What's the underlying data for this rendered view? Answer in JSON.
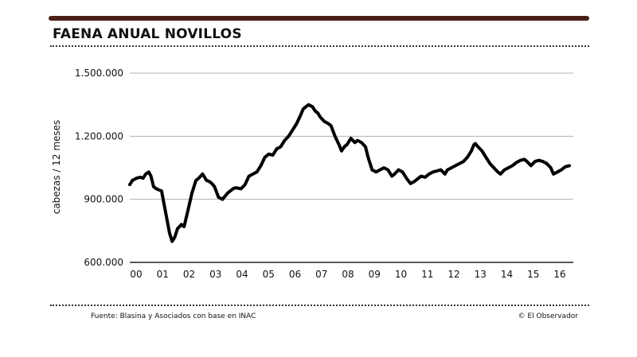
{
  "header": {
    "title": "FAENA ANUAL NOVILLOS"
  },
  "footer": {
    "source": "Fuente: Blasina y Asociados con base en INAC",
    "credit": "© El Observador"
  },
  "colors": {
    "bar": "#4a1f14",
    "line": "#000000",
    "grid": "#b0b0b0"
  },
  "chart_data": {
    "type": "line",
    "title": "FAENA ANUAL NOVILLOS",
    "xlabel": "",
    "ylabel": "cabezas / 12 meses",
    "ylim": [
      600000,
      1500000
    ],
    "xlim": [
      2000.0,
      2016.75
    ],
    "grid": true,
    "legend": "none",
    "y_ticks": [
      {
        "value": 600000,
        "label": "600.000"
      },
      {
        "value": 900000,
        "label": "900.000"
      },
      {
        "value": 1200000,
        "label": "1.200.000"
      },
      {
        "value": 1500000,
        "label": "1.500.000"
      }
    ],
    "x_ticks": [
      {
        "value": 2000,
        "label": "00"
      },
      {
        "value": 2001,
        "label": "01"
      },
      {
        "value": 2002,
        "label": "02"
      },
      {
        "value": 2003,
        "label": "03"
      },
      {
        "value": 2004,
        "label": "04"
      },
      {
        "value": 2005,
        "label": "05"
      },
      {
        "value": 2006,
        "label": "06"
      },
      {
        "value": 2007,
        "label": "07"
      },
      {
        "value": 2008,
        "label": "08"
      },
      {
        "value": 2009,
        "label": "09"
      },
      {
        "value": 2010,
        "label": "10"
      },
      {
        "value": 2011,
        "label": "11"
      },
      {
        "value": 2012,
        "label": "12"
      },
      {
        "value": 2013,
        "label": "13"
      },
      {
        "value": 2014,
        "label": "14"
      },
      {
        "value": 2015,
        "label": "15"
      },
      {
        "value": 2016,
        "label": "16"
      }
    ],
    "series": [
      {
        "x": [
          2000.0,
          2000.1,
          2000.25,
          2000.4,
          2000.5,
          2000.6,
          2000.72,
          2000.8,
          2000.9,
          2001.0,
          2001.1,
          2001.2,
          2001.35,
          2001.5,
          2001.6,
          2001.7,
          2001.8,
          2001.95,
          2002.05,
          2002.2,
          2002.35,
          2002.5,
          2002.6,
          2002.75,
          2002.9,
          2003.0,
          2003.1,
          2003.2,
          2003.35,
          2003.5,
          2003.7,
          2003.9,
          2004.0,
          2004.2,
          2004.35,
          2004.5,
          2004.65,
          2004.8,
          2004.95,
          2005.1,
          2005.25,
          2005.4,
          2005.55,
          2005.7,
          2005.85,
          2006.0,
          2006.15,
          2006.3,
          2006.45,
          2006.55,
          2006.65,
          2006.75,
          2006.9,
          2007.0,
          2007.1,
          2007.2,
          2007.35,
          2007.5,
          2007.6,
          2007.75,
          2007.9,
          2008.0,
          2008.1,
          2008.2,
          2008.35,
          2008.5,
          2008.6,
          2008.75,
          2008.9,
          2009.0,
          2009.15,
          2009.3,
          2009.45,
          2009.6,
          2009.75,
          2009.9,
          2010.0,
          2010.15,
          2010.3,
          2010.45,
          2010.6,
          2010.75,
          2010.9,
          2011.0,
          2011.15,
          2011.3,
          2011.45,
          2011.6,
          2011.75,
          2011.9,
          2012.0,
          2012.15,
          2012.3,
          2012.45,
          2012.6,
          2012.75,
          2012.9,
          2013.0,
          2013.05,
          2013.15,
          2013.3,
          2013.45,
          2013.6,
          2013.75,
          2013.9,
          2014.0,
          2014.15,
          2014.3,
          2014.45,
          2014.6,
          2014.75,
          2014.9,
          2015.0,
          2015.15,
          2015.3,
          2015.45,
          2015.6,
          2015.75,
          2015.9,
          2016.0,
          2016.15,
          2016.3,
          2016.45,
          2016.6
        ],
        "values": [
          970000,
          990000,
          1000000,
          1005000,
          1000000,
          1020000,
          1030000,
          1010000,
          960000,
          950000,
          945000,
          940000,
          840000,
          740000,
          700000,
          720000,
          760000,
          780000,
          770000,
          850000,
          930000,
          990000,
          1000000,
          1020000,
          990000,
          985000,
          975000,
          960000,
          910000,
          900000,
          930000,
          950000,
          955000,
          950000,
          970000,
          1010000,
          1020000,
          1030000,
          1060000,
          1100000,
          1115000,
          1110000,
          1140000,
          1150000,
          1180000,
          1200000,
          1230000,
          1260000,
          1300000,
          1330000,
          1340000,
          1350000,
          1340000,
          1320000,
          1310000,
          1290000,
          1270000,
          1260000,
          1250000,
          1200000,
          1160000,
          1130000,
          1150000,
          1160000,
          1190000,
          1170000,
          1180000,
          1170000,
          1150000,
          1100000,
          1040000,
          1030000,
          1040000,
          1050000,
          1040000,
          1010000,
          1020000,
          1040000,
          1030000,
          1000000,
          975000,
          985000,
          1000000,
          1010000,
          1005000,
          1020000,
          1030000,
          1035000,
          1040000,
          1020000,
          1040000,
          1050000,
          1060000,
          1070000,
          1080000,
          1100000,
          1130000,
          1160000,
          1165000,
          1150000,
          1130000,
          1100000,
          1070000,
          1050000,
          1030000,
          1020000,
          1040000,
          1050000,
          1060000,
          1075000,
          1085000,
          1090000,
          1080000,
          1060000,
          1080000,
          1085000,
          1080000,
          1070000,
          1050000,
          1020000,
          1030000,
          1040000,
          1055000,
          1060000
        ]
      }
    ]
  }
}
